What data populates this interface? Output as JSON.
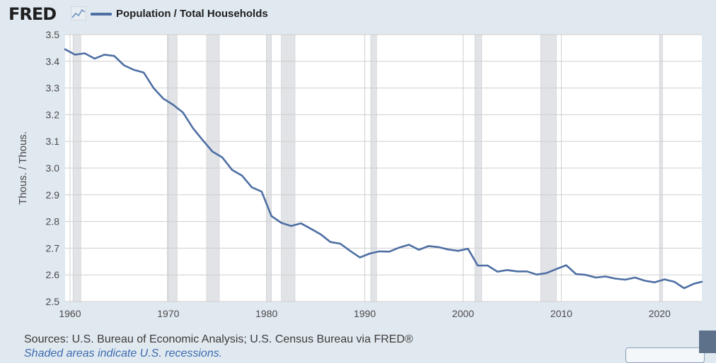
{
  "header": {
    "logo_text": "FRED",
    "logo_icon": "chart-line-icon",
    "series_label": "Population / Total Households"
  },
  "footer": {
    "source": "Sources: U.S. Bureau of Economic Analysis; U.S. Census Bureau via FRED®",
    "shading_note": "Shaded areas indicate U.S. recessions."
  },
  "colors": {
    "background": "#e1e9f0",
    "plot_background": "#ffffff",
    "series": "#4e6fa3",
    "recession_shading": "#e1e3e6",
    "grid": "#cfcfcf"
  },
  "chart_data": {
    "type": "line",
    "title": "",
    "xlabel": "",
    "ylabel": "Thous. / Thous.",
    "xlim": [
      1959.5,
      2024.3
    ],
    "ylim": [
      2.5,
      3.5
    ],
    "y_ticks": [
      2.5,
      2.6,
      2.7,
      2.8,
      2.9,
      3.0,
      3.1,
      3.2,
      3.3,
      3.4,
      3.5
    ],
    "y_tick_labels": [
      "2.5",
      "2.6",
      "2.7",
      "2.8",
      "2.9",
      "3.0",
      "3.1",
      "3.2",
      "3.3",
      "3.4",
      "3.5"
    ],
    "x_ticks": [
      1960,
      1970,
      1980,
      1990,
      2000,
      2010,
      2020
    ],
    "x_tick_labels": [
      "1960",
      "1970",
      "1980",
      "1990",
      "2000",
      "2010",
      "2020"
    ],
    "grid": true,
    "legend": "top-left",
    "recessions": [
      [
        1960.3,
        1961.1
      ],
      [
        1969.9,
        1970.9
      ],
      [
        1973.9,
        1975.2
      ],
      [
        1980.0,
        1980.5
      ],
      [
        1981.5,
        1982.9
      ],
      [
        1990.6,
        1991.2
      ],
      [
        2001.2,
        2001.9
      ],
      [
        2007.9,
        2009.5
      ],
      [
        2020.1,
        2020.3
      ]
    ],
    "series": [
      {
        "name": "Population / Total Households",
        "x": [
          1959.5,
          1960.5,
          1961.5,
          1962.5,
          1963.5,
          1964.5,
          1965.5,
          1966.5,
          1967.5,
          1968.5,
          1969.5,
          1970.5,
          1971.5,
          1972.5,
          1973.5,
          1974.5,
          1975.5,
          1976.5,
          1977.5,
          1978.5,
          1979.5,
          1980.5,
          1981.5,
          1982.5,
          1983.5,
          1984.5,
          1985.5,
          1986.5,
          1987.5,
          1988.5,
          1989.5,
          1990.5,
          1991.5,
          1992.5,
          1993.5,
          1994.5,
          1995.5,
          1996.5,
          1997.5,
          1998.5,
          1999.5,
          2000.5,
          2001.5,
          2002.5,
          2003.5,
          2004.5,
          2005.5,
          2006.5,
          2007.5,
          2008.5,
          2009.5,
          2010.5,
          2011.5,
          2012.5,
          2013.5,
          2014.5,
          2015.5,
          2016.5,
          2017.5,
          2018.5,
          2019.5,
          2020.5,
          2021.5,
          2022.5,
          2023.5,
          2024.3
        ],
        "values": [
          3.445,
          3.425,
          3.43,
          3.41,
          3.425,
          3.42,
          3.385,
          3.368,
          3.358,
          3.3,
          3.26,
          3.237,
          3.208,
          3.15,
          3.105,
          3.062,
          3.04,
          2.993,
          2.972,
          2.928,
          2.912,
          2.82,
          2.795,
          2.783,
          2.793,
          2.773,
          2.752,
          2.723,
          2.717,
          2.69,
          2.665,
          2.68,
          2.688,
          2.687,
          2.702,
          2.713,
          2.694,
          2.708,
          2.704,
          2.695,
          2.69,
          2.698,
          2.635,
          2.635,
          2.612,
          2.618,
          2.613,
          2.613,
          2.601,
          2.607,
          2.622,
          2.636,
          2.603,
          2.6,
          2.59,
          2.594,
          2.586,
          2.582,
          2.59,
          2.578,
          2.572,
          2.583,
          2.574,
          2.55,
          2.567,
          2.574
        ]
      }
    ]
  }
}
